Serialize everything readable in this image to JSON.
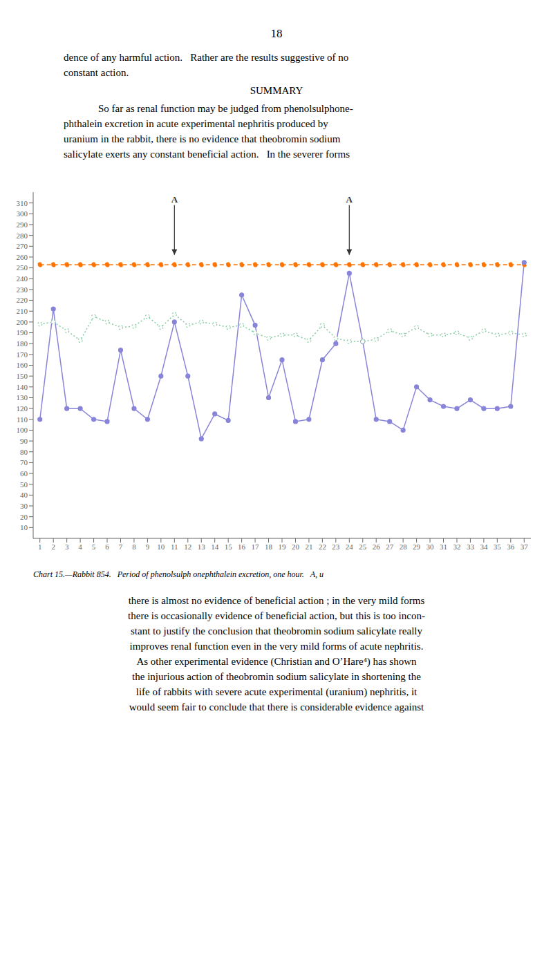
{
  "page": {
    "number": "18",
    "text_above": [
      "dence of any harmful action.   Rather are the results suggestive of no",
      "constant action."
    ],
    "heading": "SUMMARY",
    "paragraph": [
      "So far as renal function may be judged from phenolsulphone-",
      "phthalein excretion in acute experimental nephritis produced by",
      "uranium in the rabbit, there is no evidence that theobromin sodium",
      "salicylate exerts any constant beneficial action.   In the severer forms"
    ],
    "text_below": [
      "there is almost no evidence of beneficial action ; in the very mild forms",
      "there is occasionally evidence of beneficial action, but this is too incon-",
      "stant to justify the conclusion that theobromin sodium salicylate really",
      "improves renal function even in the very mild forms of acute nephritis.",
      "As other experimental evidence (Christian and O’Hare⁴) has shown",
      "the injurious action of theobromin sodium salicylate in shortening the",
      "life of rabbits with severe acute experimental (uranium) nephritis, it",
      "would seem fair to conclude that there is considerable evidence against"
    ]
  },
  "chart_data": {
    "type": "line",
    "title": "Chart 15.—Rabbit 854.   Period of phenolsulph onephthalein excretion, one hour.   A, u",
    "x": [
      1,
      2,
      3,
      4,
      5,
      6,
      7,
      8,
      9,
      10,
      11,
      12,
      13,
      14,
      15,
      16,
      17,
      18,
      19,
      20,
      21,
      22,
      23,
      24,
      25,
      26,
      27,
      28,
      29,
      30,
      31,
      32,
      33,
      34,
      35,
      36,
      37
    ],
    "xlim": [
      0.5,
      37.5
    ],
    "xticks": [
      1,
      2,
      3,
      4,
      5,
      6,
      7,
      8,
      9,
      10,
      11,
      12,
      13,
      14,
      15,
      16,
      17,
      18,
      19,
      20,
      21,
      22,
      23,
      24,
      25,
      26,
      27,
      28,
      29,
      30,
      31,
      32,
      33,
      34,
      35,
      36,
      37
    ],
    "ylim": [
      0,
      320
    ],
    "yticks": [
      10,
      20,
      30,
      40,
      50,
      60,
      70,
      80,
      90,
      100,
      110,
      120,
      130,
      140,
      150,
      160,
      170,
      180,
      190,
      200,
      210,
      220,
      230,
      240,
      250,
      260,
      270,
      280,
      290,
      300,
      310
    ],
    "grid": false,
    "series": [
      {
        "values": [
          253,
          253,
          253,
          253,
          253,
          253,
          253,
          253,
          253,
          253,
          253,
          253,
          253,
          253,
          253,
          253,
          253,
          253,
          253,
          253,
          253,
          253,
          253,
          253,
          253,
          253,
          253,
          253,
          253,
          253,
          253,
          253,
          253,
          253,
          253,
          253,
          253
        ],
        "line_style": "dashed",
        "marker": "circle",
        "color": "#ff7300"
      },
      {
        "values": [
          110,
          212,
          120,
          120,
          110,
          108,
          174,
          120,
          110,
          150,
          200,
          150,
          92,
          115,
          109,
          225,
          197,
          130,
          165,
          108,
          110,
          165,
          180,
          245,
          182,
          110,
          108,
          100,
          140,
          128,
          122,
          120,
          128,
          120,
          120,
          122,
          255
        ],
        "line_style": "solid",
        "marker": "circle",
        "color": "#8884d8"
      },
      {
        "values": [
          198,
          200,
          192,
          183,
          205,
          200,
          195,
          196,
          205,
          195,
          207,
          197,
          200,
          198,
          195,
          197,
          190,
          185,
          188,
          188,
          183,
          197,
          185,
          182,
          182,
          184,
          192,
          188,
          195,
          188,
          188,
          190,
          185,
          192,
          188,
          190,
          188
        ],
        "line_style": "dotted",
        "marker": "hollow_circle",
        "color": "#82ca9d"
      }
    ],
    "annotations": [
      {
        "text": "A",
        "x": 11,
        "y": 262,
        "y_start": 308
      },
      {
        "text": "A",
        "x": 24,
        "y": 262,
        "y_start": 308
      }
    ]
  }
}
